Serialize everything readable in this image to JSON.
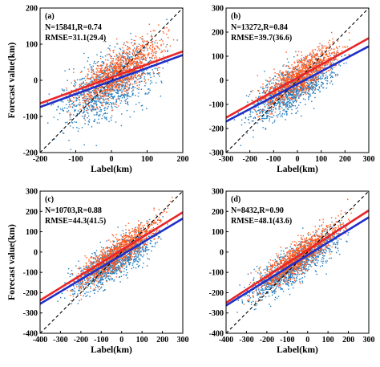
{
  "chart_data": [
    {
      "type": "scatter",
      "panel": "(a)",
      "stats_line": "N=15841,R=0.74",
      "rmse_line": "RMSE=31.1(29.4)",
      "xlabel": "Label(km)",
      "ylabel": "Forecast value(km)",
      "xlim": [
        -200,
        200
      ],
      "ylim": [
        -200,
        200
      ],
      "xticks": [
        "-200",
        "-100",
        "0",
        "100",
        "200"
      ],
      "yticks": [
        "-200",
        "-100",
        "0",
        "100",
        "200"
      ],
      "reference_line": {
        "slope": 1,
        "intercept": 0
      },
      "fit_lines": [
        {
          "color": "#e8262a",
          "slope": 0.36,
          "intercept": 8
        },
        {
          "color": "#1f2fc8",
          "slope": 0.36,
          "intercept": -2
        }
      ],
      "clouds": [
        {
          "color": "#1f7bbf",
          "x_range": [
            -200,
            190
          ],
          "slope": 0.45,
          "intercept": -10,
          "spread": 45
        },
        {
          "color": "#ff5a1f",
          "x_range": [
            -150,
            190
          ],
          "slope": 0.55,
          "intercept": 10,
          "spread": 30
        }
      ]
    },
    {
      "type": "scatter",
      "panel": "(b)",
      "stats_line": "N=13272,R=0.84",
      "rmse_line": "RMSE=39.7(36.6)",
      "xlabel": "Label(km)",
      "ylabel": "",
      "xlim": [
        -300,
        300
      ],
      "ylim": [
        -300,
        300
      ],
      "xticks": [
        "-300",
        "-200",
        "-100",
        "0",
        "100",
        "200",
        "300"
      ],
      "yticks": [
        "-300",
        "-200",
        "-100",
        "0",
        "100",
        "200",
        "300"
      ],
      "reference_line": {
        "slope": 1,
        "intercept": 0
      },
      "fit_lines": [
        {
          "color": "#e8262a",
          "slope": 0.55,
          "intercept": 10
        },
        {
          "color": "#1f2fc8",
          "slope": 0.52,
          "intercept": -15
        }
      ],
      "clouds": [
        {
          "color": "#1f7bbf",
          "x_range": [
            -280,
            240
          ],
          "slope": 0.55,
          "intercept": -25,
          "spread": 45
        },
        {
          "color": "#ff5a1f",
          "x_range": [
            -230,
            250
          ],
          "slope": 0.62,
          "intercept": 10,
          "spread": 35
        }
      ]
    },
    {
      "type": "scatter",
      "panel": "(c)",
      "stats_line": "N=10703,R=0.88",
      "rmse_line": "RMSE=44.3(41.5)",
      "xlabel": "Label(km)",
      "ylabel": "Forecast value(km)",
      "xlim": [
        -400,
        300
      ],
      "ylim": [
        -400,
        300
      ],
      "xticks": [
        "-400",
        "-300",
        "-200",
        "-100",
        "0",
        "100",
        "200",
        "300"
      ],
      "yticks": [
        "-400",
        "-300",
        "-200",
        "-100",
        "0",
        "100",
        "200",
        "300"
      ],
      "reference_line": {
        "slope": 1,
        "intercept": 0
      },
      "fit_lines": [
        {
          "color": "#e8262a",
          "slope": 0.62,
          "intercept": 10
        },
        {
          "color": "#1f2fc8",
          "slope": 0.6,
          "intercept": -15
        }
      ],
      "clouds": [
        {
          "color": "#1f7bbf",
          "x_range": [
            -330,
            260
          ],
          "slope": 0.62,
          "intercept": -25,
          "spread": 45
        },
        {
          "color": "#ff5a1f",
          "x_range": [
            -300,
            270
          ],
          "slope": 0.7,
          "intercept": 10,
          "spread": 38
        }
      ]
    },
    {
      "type": "scatter",
      "panel": "(d)",
      "stats_line": "N=8432,R=0.90",
      "rmse_line": "RMSE=48.1(43.6)",
      "xlabel": "Label(km)",
      "ylabel": "",
      "xlim": [
        -400,
        300
      ],
      "ylim": [
        -400,
        300
      ],
      "xticks": [
        "-400",
        "-300",
        "-200",
        "-100",
        "0",
        "100",
        "200",
        "300"
      ],
      "yticks": [
        "-400",
        "-300",
        "-200",
        "-100",
        "0",
        "100",
        "200",
        "300"
      ],
      "reference_line": {
        "slope": 1,
        "intercept": 0
      },
      "fit_lines": [
        {
          "color": "#e8262a",
          "slope": 0.65,
          "intercept": 10
        },
        {
          "color": "#1f2fc8",
          "slope": 0.62,
          "intercept": -15
        }
      ],
      "clouds": [
        {
          "color": "#1f7bbf",
          "x_range": [
            -390,
            240
          ],
          "slope": 0.65,
          "intercept": -25,
          "spread": 45
        },
        {
          "color": "#ff5a1f",
          "x_range": [
            -330,
            250
          ],
          "slope": 0.72,
          "intercept": 10,
          "spread": 38
        }
      ]
    }
  ]
}
